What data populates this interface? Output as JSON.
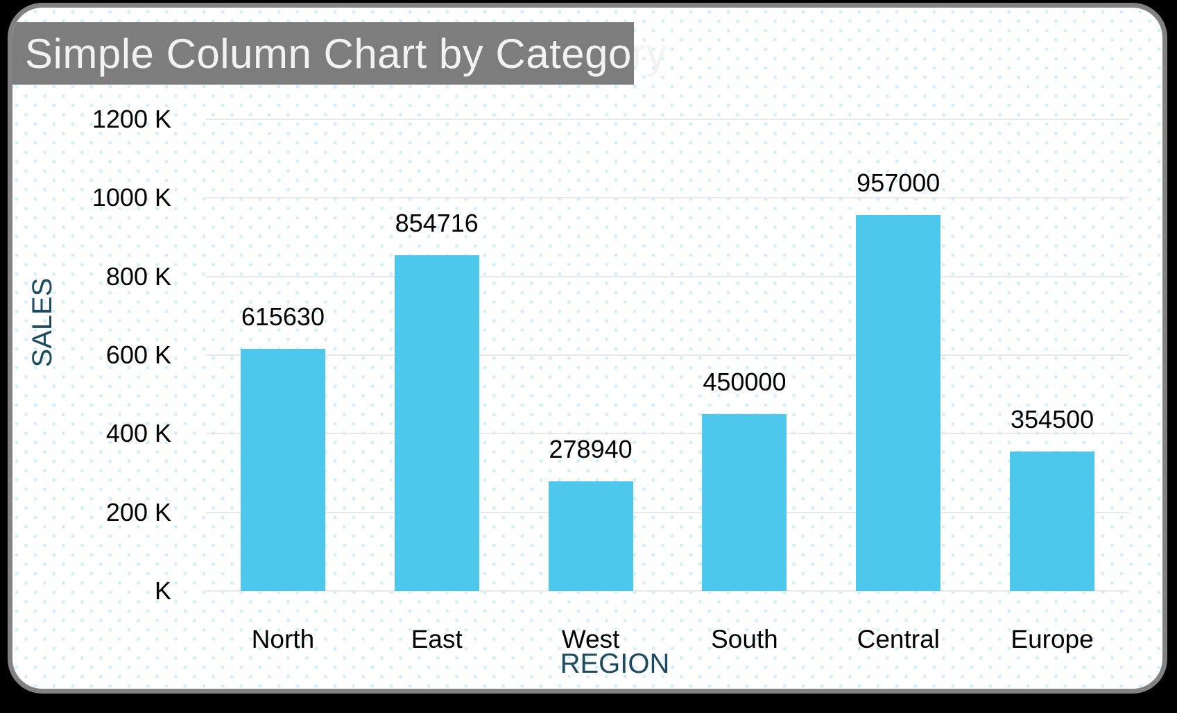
{
  "chart_data": {
    "type": "bar",
    "title": "Simple Column Chart by Category",
    "categories": [
      "North",
      "East",
      "West",
      "South",
      "Central",
      "Europe"
    ],
    "values": [
      615630,
      854716,
      278940,
      450000,
      957000,
      354500
    ],
    "data_labels": [
      "615630",
      "854716",
      "278940",
      "450000",
      "957000",
      "354500"
    ],
    "xlabel": "REGION",
    "ylabel": "SALES",
    "y_ticks": [
      {
        "label": "1200 K",
        "value": 1200000
      },
      {
        "label": "1000 K",
        "value": 1000000
      },
      {
        "label": "800 K",
        "value": 800000
      },
      {
        "label": "600 K",
        "value": 600000
      },
      {
        "label": "400 K",
        "value": 400000
      },
      {
        "label": "200 K",
        "value": 200000
      },
      {
        "label": "K",
        "value": 0
      }
    ],
    "ylim": [
      0,
      1200000
    ],
    "grid": true,
    "legend": false,
    "colors": {
      "bar": "#4DC7EC",
      "gridline": "#E8E8E8",
      "axis_title": "#1C4A5E",
      "label": "#000000",
      "title_bar_bg": "#7D7D7D",
      "title_text": "#F2F2F2",
      "card_bg": "#FFFFFF",
      "card_border": "#828282",
      "background_dot": "#D4EEFA",
      "outer_bg": "#000000"
    }
  }
}
